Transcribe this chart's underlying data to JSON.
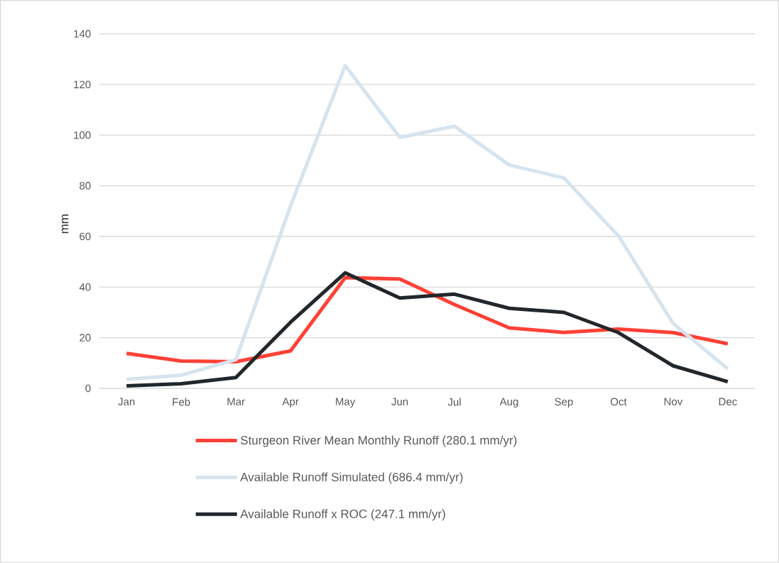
{
  "chart_data": {
    "type": "line",
    "ylabel": "mm",
    "categories": [
      "Jan",
      "Feb",
      "Mar",
      "Apr",
      "May",
      "Jun",
      "Jul",
      "Aug",
      "Sep",
      "Oct",
      "Nov",
      "Dec"
    ],
    "series": [
      {
        "name": "Sturgeon River Mean Monthly Runoff (280.1 mm/yr)",
        "color": "#ff4136",
        "values": [
          13.8,
          10.8,
          10.5,
          14.8,
          43.7,
          43.2,
          33.1,
          23.9,
          22.1,
          23.4,
          22.0,
          17.6
        ]
      },
      {
        "name": "Available Runoff Simulated (686.4 mm/yr)",
        "color": "#d6e4ef",
        "values": [
          3.6,
          5.2,
          11.3,
          72,
          127.4,
          99.1,
          103.5,
          88.2,
          83.1,
          60.2,
          25.6,
          7.7
        ]
      },
      {
        "name": "Available Runoff x ROC (247.1 mm/yr)",
        "color": "#22272b",
        "values": [
          1.0,
          1.8,
          4.3,
          26.1,
          45.6,
          35.7,
          37.2,
          31.6,
          30.0,
          22.0,
          8.9,
          2.6
        ]
      }
    ],
    "ylim": [
      0,
      140
    ],
    "yticks": [
      0,
      20,
      40,
      60,
      80,
      100,
      120,
      140
    ],
    "grid": "y",
    "legend": "bottom",
    "marker": "none",
    "line_style": "solid"
  }
}
